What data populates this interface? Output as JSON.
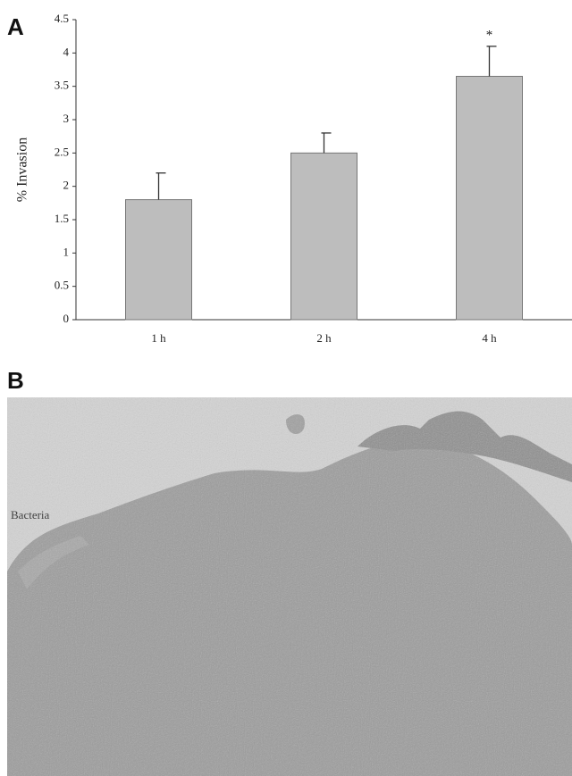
{
  "chart_data": {
    "type": "bar",
    "y_label": "% Invasion",
    "categories": [
      "1 h",
      "2 h",
      "4 h"
    ],
    "values": [
      1.8,
      2.5,
      3.65
    ],
    "errors": [
      0.4,
      0.3,
      0.45
    ],
    "color": "#bdbdbd",
    "ylim": [
      0,
      4.5
    ],
    "yticks": [
      0,
      0.5,
      1,
      1.5,
      2,
      2.5,
      3,
      3.5,
      4,
      4.5
    ],
    "grid": false,
    "annotations": [
      {
        "text": "*",
        "x": "4 h"
      }
    ]
  },
  "panel_labels": [
    "A",
    "B"
  ],
  "micrograph": {
    "annotation": "Bacteria"
  }
}
